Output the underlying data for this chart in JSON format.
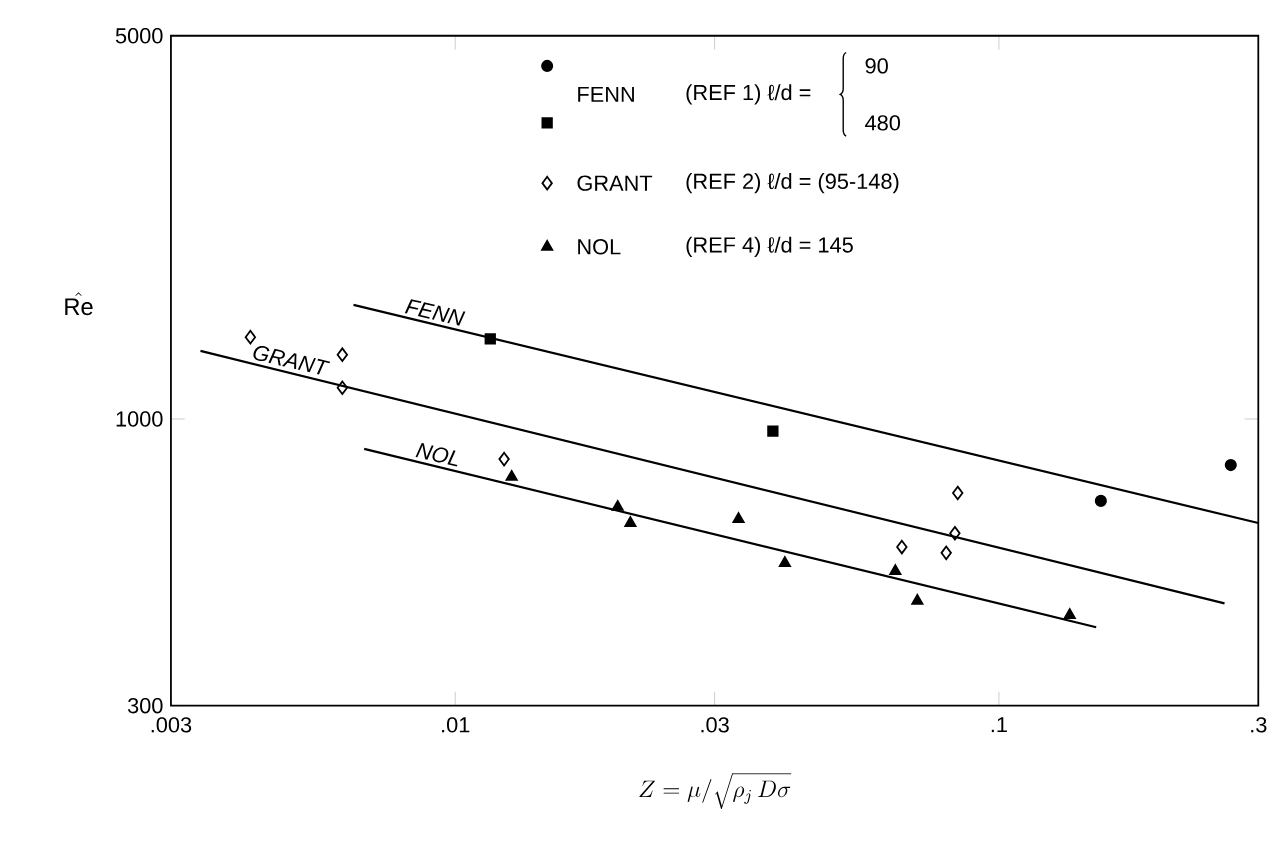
{
  "chart_data": {
    "type": "scatter",
    "xlabel": "Z = \\mu / \\sqrt{\\rho_j \\, D \\sigma}",
    "ylabel": "\\hat{\\mathrm{Re}}",
    "log": "xy",
    "xlim": [
      0.003,
      0.3
    ],
    "ylim": [
      300,
      5000
    ],
    "xticks": [
      {
        "value": 0.003,
        "label": ".003"
      },
      {
        "value": 0.01,
        "label": ".01"
      },
      {
        "value": 0.03,
        "label": ".03"
      },
      {
        "value": 0.1,
        "label": ".1"
      },
      {
        "value": 0.3,
        "label": ".3"
      }
    ],
    "yticks": [
      300,
      1000,
      5000
    ],
    "grid": false,
    "legend": "top",
    "series": [
      {
        "color": "#000000",
        "marker": "circle",
        "x": [
          0.154,
          0.267
        ],
        "values": [
          709,
          824
        ]
      },
      {
        "color": "#000000",
        "marker": "square",
        "x": [
          0.0116,
          0.0384
        ],
        "values": [
          1400,
          950
        ]
      },
      {
        "name": "GRANT",
        "color": "#000000",
        "marker": "diamond",
        "x": [
          0.0042,
          0.0062,
          0.0062,
          0.0123,
          0.0663,
          0.08,
          0.083,
          0.084
        ],
        "values": [
          1410,
          1310,
          1140,
          845,
          584,
          570,
          619,
          733
        ]
      },
      {
        "name": "NOL",
        "color": "#000000",
        "marker": "triangle",
        "x": [
          0.0127,
          0.0199,
          0.021,
          0.0332,
          0.0404,
          0.0645,
          0.0708,
          0.135
        ],
        "values": [
          784,
          691,
          646,
          657,
          546,
          528,
          466,
          439
        ]
      },
      {
        "type": "line",
        "color": "#000000",
        "marker": "none",
        "x": [
          0.0065,
          0.3
        ],
        "values": [
          1615,
          646
        ]
      },
      {
        "type": "line",
        "color": "#000000",
        "marker": "none",
        "x": [
          0.0034,
          0.26
        ],
        "values": [
          1331,
          461
        ]
      },
      {
        "type": "line",
        "color": "#000000",
        "marker": "none",
        "x": [
          0.0068,
          0.151
        ],
        "values": [
          882,
          417
        ]
      }
    ],
    "annotations": [
      "FENN",
      "(REF 1) ℓ/d =",
      "90",
      "480",
      "(REF 2) ℓ/d = (95-148)",
      "(REF 4) ℓ/d = 145",
      "FENN",
      "GRANT",
      "NOL"
    ]
  }
}
